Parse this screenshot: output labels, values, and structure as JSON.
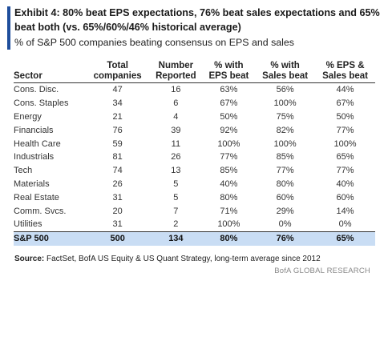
{
  "header": {
    "title": "Exhibit 4: 80% beat EPS expectations, 76% beat sales expectations and 65% beat both (vs. 65%/60%/46% historical average)",
    "subtitle": "% of S&P 500 companies beating consensus on EPS and sales"
  },
  "table": {
    "columns": [
      [
        "Sector"
      ],
      [
        "Total",
        "companies"
      ],
      [
        "Number",
        "Reported"
      ],
      [
        "% with",
        "EPS beat"
      ],
      [
        "% with",
        "Sales beat"
      ],
      [
        "% EPS &",
        "Sales beat"
      ]
    ],
    "rows": [
      [
        "Cons. Disc.",
        "47",
        "16",
        "63%",
        "56%",
        "44%"
      ],
      [
        "Cons. Staples",
        "34",
        "6",
        "67%",
        "100%",
        "67%"
      ],
      [
        "Energy",
        "21",
        "4",
        "50%",
        "75%",
        "50%"
      ],
      [
        "Financials",
        "76",
        "39",
        "92%",
        "82%",
        "77%"
      ],
      [
        "Health Care",
        "59",
        "11",
        "100%",
        "100%",
        "100%"
      ],
      [
        "Industrials",
        "81",
        "26",
        "77%",
        "85%",
        "65%"
      ],
      [
        "Tech",
        "74",
        "13",
        "85%",
        "77%",
        "77%"
      ],
      [
        "Materials",
        "26",
        "5",
        "40%",
        "80%",
        "40%"
      ],
      [
        "Real Estate",
        "31",
        "5",
        "80%",
        "60%",
        "60%"
      ],
      [
        "Comm. Svcs.",
        "20",
        "7",
        "71%",
        "29%",
        "14%"
      ],
      [
        "Utilities",
        "31",
        "2",
        "100%",
        "0%",
        "0%"
      ]
    ],
    "total": [
      "S&P 500",
      "500",
      "134",
      "80%",
      "76%",
      "65%"
    ]
  },
  "source": {
    "label": "Source:",
    "text": "FactSet, BofA US Equity & US Quant Strategy, long-term average since 2012"
  },
  "footer": "BofA GLOBAL RESEARCH"
}
